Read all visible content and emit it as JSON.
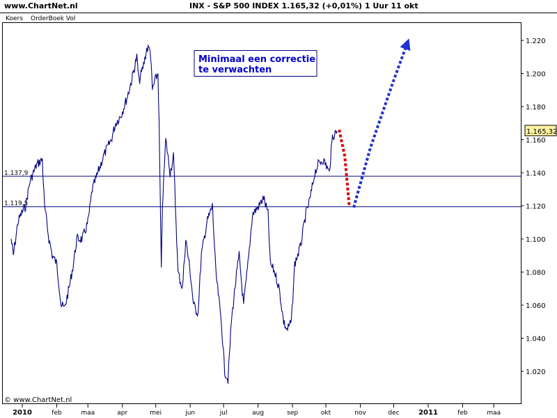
{
  "header": {
    "site": "www.ChartNet.nl",
    "title": "INX - S&P 500 INDEX    1.165,32 (+0,01%)    1 Uur  11 okt"
  },
  "tabs": [
    "Koers",
    "OrderBoek Vol"
  ],
  "copyright": "© www.ChartNet.nl",
  "annotation": [
    "Minimaal een correctie",
    "te verwachten"
  ],
  "price_badge": "1.165,32",
  "chart_data": {
    "type": "line",
    "title": "INX - S&P 500 INDEX",
    "interval": "1 Uur",
    "last_value": 1165.32,
    "ylim": [
      1005,
      1232
    ],
    "y_ticks": [
      1020,
      1040,
      1060,
      1080,
      1100,
      1120,
      1140,
      1160,
      1180,
      1200,
      1220
    ],
    "y_tick_labels": [
      "1.020",
      "1.040",
      "1.060",
      "1.080",
      "1.100",
      "1.120",
      "1.140",
      "1.160",
      "1.180",
      "1.200",
      "1.220"
    ],
    "x_ticks": [
      {
        "label": "2010",
        "date": "2010-01-01",
        "bold": true
      },
      {
        "label": "feb",
        "date": "2010-02-01"
      },
      {
        "label": "maa",
        "date": "2010-03-01"
      },
      {
        "label": "apr",
        "date": "2010-04-01"
      },
      {
        "label": "mei",
        "date": "2010-05-01"
      },
      {
        "label": "jun",
        "date": "2010-06-01"
      },
      {
        "label": "jul",
        "date": "2010-07-01"
      },
      {
        "label": "aug",
        "date": "2010-08-01"
      },
      {
        "label": "sep",
        "date": "2010-09-01"
      },
      {
        "label": "okt",
        "date": "2010-10-01"
      },
      {
        "label": "nov",
        "date": "2010-11-01"
      },
      {
        "label": "dec",
        "date": "2010-12-01"
      },
      {
        "label": "2011",
        "date": "2011-01-01",
        "bold": true
      },
      {
        "label": "feb",
        "date": "2011-02-01"
      },
      {
        "label": "maa",
        "date": "2011-03-01"
      }
    ],
    "hlines": [
      {
        "label": "1.137,9",
        "value": 1137.9
      },
      {
        "label": "1.119,5",
        "value": 1119.5
      }
    ],
    "series": [
      {
        "color": "#000080",
        "points": [
          [
            "2009-12-22",
            1100
          ],
          [
            "2009-12-24",
            1090
          ],
          [
            "2009-12-28",
            1110
          ],
          [
            "2009-12-31",
            1115
          ],
          [
            "2010-01-04",
            1120
          ],
          [
            "2010-01-08",
            1135
          ],
          [
            "2010-01-11",
            1140
          ],
          [
            "2010-01-14",
            1145
          ],
          [
            "2010-01-19",
            1148
          ],
          [
            "2010-01-21",
            1120
          ],
          [
            "2010-01-25",
            1100
          ],
          [
            "2010-01-28",
            1090
          ],
          [
            "2010-02-01",
            1085
          ],
          [
            "2010-02-05",
            1060
          ],
          [
            "2010-02-08",
            1058
          ],
          [
            "2010-02-12",
            1070
          ],
          [
            "2010-02-16",
            1085
          ],
          [
            "2010-02-19",
            1100
          ],
          [
            "2010-02-24",
            1100
          ],
          [
            "2010-03-01",
            1110
          ],
          [
            "2010-03-05",
            1130
          ],
          [
            "2010-03-10",
            1140
          ],
          [
            "2010-03-15",
            1150
          ],
          [
            "2010-03-22",
            1160
          ],
          [
            "2010-03-26",
            1170
          ],
          [
            "2010-03-31",
            1175
          ],
          [
            "2010-04-05",
            1185
          ],
          [
            "2010-04-09",
            1195
          ],
          [
            "2010-04-14",
            1210
          ],
          [
            "2010-04-16",
            1195
          ],
          [
            "2010-04-20",
            1205
          ],
          [
            "2010-04-23",
            1215
          ],
          [
            "2010-04-26",
            1215
          ],
          [
            "2010-04-28",
            1190
          ],
          [
            "2010-04-30",
            1195
          ],
          [
            "2010-05-03",
            1200
          ],
          [
            "2010-05-04",
            1170
          ],
          [
            "2010-05-06",
            1080
          ],
          [
            "2010-05-07",
            1120
          ],
          [
            "2010-05-10",
            1160
          ],
          [
            "2010-05-14",
            1140
          ],
          [
            "2010-05-17",
            1150
          ],
          [
            "2010-05-21",
            1080
          ],
          [
            "2010-05-25",
            1070
          ],
          [
            "2010-05-28",
            1100
          ],
          [
            "2010-06-01",
            1080
          ],
          [
            "2010-06-04",
            1060
          ],
          [
            "2010-06-08",
            1055
          ],
          [
            "2010-06-11",
            1090
          ],
          [
            "2010-06-16",
            1110
          ],
          [
            "2010-06-21",
            1120
          ],
          [
            "2010-06-24",
            1080
          ],
          [
            "2010-06-29",
            1050
          ],
          [
            "2010-07-02",
            1020
          ],
          [
            "2010-07-05",
            1015
          ],
          [
            "2010-07-08",
            1050
          ],
          [
            "2010-07-12",
            1075
          ],
          [
            "2010-07-15",
            1090
          ],
          [
            "2010-07-19",
            1060
          ],
          [
            "2010-07-23",
            1085
          ],
          [
            "2010-07-27",
            1115
          ],
          [
            "2010-08-02",
            1120
          ],
          [
            "2010-08-06",
            1125
          ],
          [
            "2010-08-10",
            1115
          ],
          [
            "2010-08-12",
            1085
          ],
          [
            "2010-08-16",
            1080
          ],
          [
            "2010-08-20",
            1070
          ],
          [
            "2010-08-24",
            1050
          ],
          [
            "2010-08-27",
            1045
          ],
          [
            "2010-08-31",
            1050
          ],
          [
            "2010-09-03",
            1085
          ],
          [
            "2010-09-08",
            1095
          ],
          [
            "2010-09-13",
            1115
          ],
          [
            "2010-09-17",
            1125
          ],
          [
            "2010-09-21",
            1140
          ],
          [
            "2010-09-24",
            1145
          ],
          [
            "2010-09-28",
            1148
          ],
          [
            "2010-10-01",
            1145
          ],
          [
            "2010-10-04",
            1140
          ],
          [
            "2010-10-07",
            1162
          ],
          [
            "2010-10-11",
            1165.32
          ]
        ]
      }
    ],
    "projection": [
      {
        "color": "#dd0000",
        "points": [
          [
            "2010-10-13",
            1166
          ],
          [
            "2010-10-18",
            1150
          ],
          [
            "2010-10-22",
            1120
          ]
        ]
      },
      {
        "color": "#2233cc",
        "arrow": true,
        "points": [
          [
            "2010-10-26",
            1119
          ],
          [
            "2010-11-10",
            1155
          ],
          [
            "2010-12-01",
            1196
          ],
          [
            "2010-12-13",
            1218
          ]
        ]
      }
    ]
  }
}
